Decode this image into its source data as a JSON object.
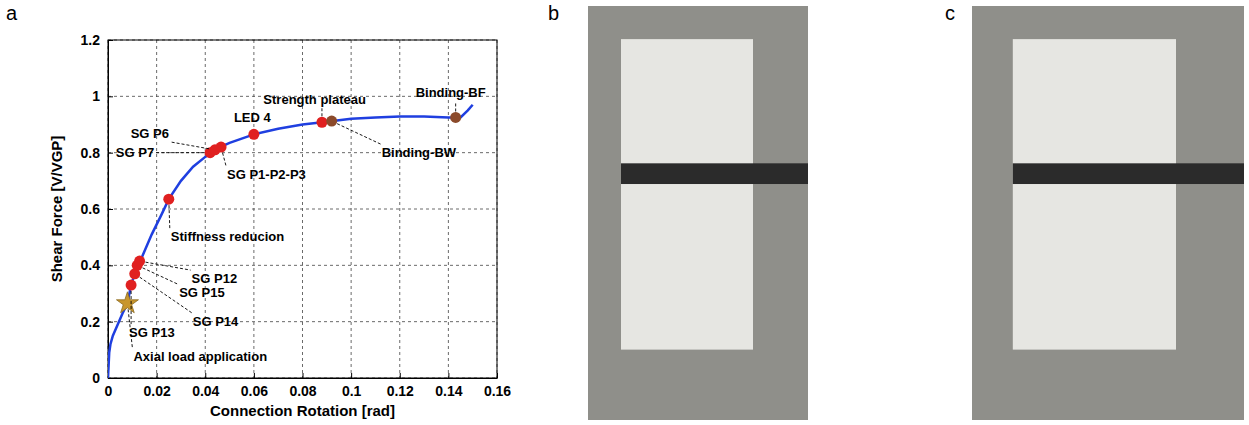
{
  "chart_data": {
    "type": "line",
    "x_label": "Connection Rotation [rad]",
    "y_label": "Shear Force [V/VGP]",
    "x": [
      0,
      0.0005,
      0.001,
      0.002,
      0.004,
      0.006,
      0.008,
      0.0095,
      0.011,
      0.012,
      0.013,
      0.014,
      0.018,
      0.022,
      0.025,
      0.03,
      0.035,
      0.04,
      0.045,
      0.05,
      0.06,
      0.07,
      0.08,
      0.09,
      0.1,
      0.11,
      0.12,
      0.13,
      0.14,
      0.145,
      0.148,
      0.15
    ],
    "series": [
      {
        "color": "#1f3fe0",
        "values": [
          0,
          0.09,
          0.12,
          0.15,
          0.19,
          0.23,
          0.265,
          0.33,
          0.37,
          0.4,
          0.415,
          0.43,
          0.51,
          0.58,
          0.635,
          0.7,
          0.75,
          0.785,
          0.815,
          0.835,
          0.865,
          0.885,
          0.9,
          0.91,
          0.92,
          0.925,
          0.928,
          0.928,
          0.925,
          0.925,
          0.95,
          0.97
        ]
      }
    ],
    "xlim": [
      0,
      0.16
    ],
    "ylim": [
      0,
      1.2
    ],
    "xticks": [
      0,
      0.02,
      0.04,
      0.06,
      0.08,
      0.1,
      0.12,
      0.14,
      0.16
    ],
    "yticks": [
      0,
      0.2,
      0.4,
      0.6,
      0.8,
      1,
      1.2
    ],
    "grid": true,
    "annotations": [
      {
        "text": "Axial load application",
        "x": 0.008,
        "y": 0.265,
        "color": "#c8962e",
        "marker": "star"
      },
      {
        "text": "SG P13",
        "x": 0.0095,
        "y": 0.33,
        "color": "#e02020",
        "marker": "circle"
      },
      {
        "text": "SG P14",
        "x": 0.011,
        "y": 0.37,
        "color": "#e02020",
        "marker": "circle"
      },
      {
        "text": "SG P15",
        "x": 0.012,
        "y": 0.4,
        "color": "#e02020",
        "marker": "circle"
      },
      {
        "text": "SG P12",
        "x": 0.013,
        "y": 0.415,
        "color": "#e02020",
        "marker": "circle"
      },
      {
        "text": "Stiffness reducion",
        "x": 0.025,
        "y": 0.635,
        "color": "#e02020",
        "marker": "circle"
      },
      {
        "text": "SG P7",
        "x": 0.042,
        "y": 0.8,
        "color": "#e02020",
        "marker": "circle"
      },
      {
        "text": "SG P6",
        "x": 0.044,
        "y": 0.81,
        "color": "#e02020",
        "marker": "circle"
      },
      {
        "text": "SG P1-P2-P3",
        "x": 0.0465,
        "y": 0.82,
        "color": "#e02020",
        "marker": "circle"
      },
      {
        "text": "LED 4",
        "x": 0.06,
        "y": 0.865,
        "color": "#e02020",
        "marker": "circle"
      },
      {
        "text": "Strength plateau",
        "x": 0.088,
        "y": 0.908,
        "color": "#e02020",
        "marker": "circle"
      },
      {
        "text": "Binding-BW",
        "x": 0.092,
        "y": 0.912,
        "color": "#8b4a2b",
        "marker": "circle"
      },
      {
        "text": "Binding-BF",
        "x": 0.143,
        "y": 0.925,
        "color": "#8b4a2b",
        "marker": "circle"
      }
    ]
  },
  "panel_labels": [
    "a",
    "b",
    "c"
  ]
}
